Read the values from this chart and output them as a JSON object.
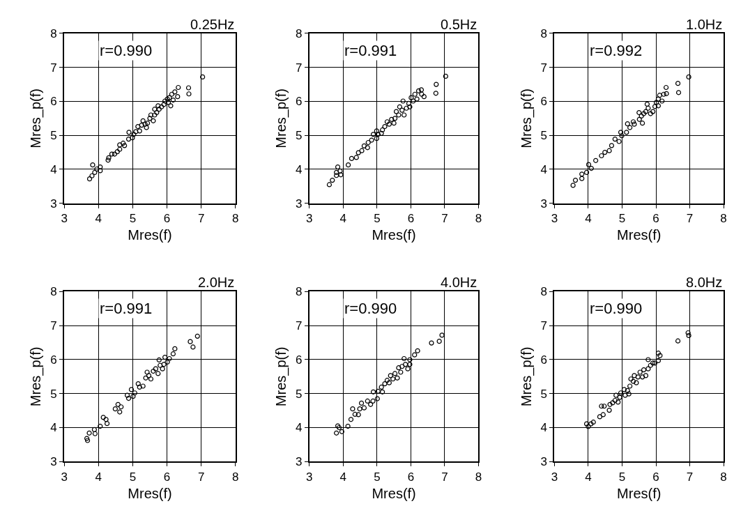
{
  "chart_data": [
    {
      "type": "scatter",
      "title": "0.25Hz",
      "xlabel": "Mres(f)",
      "ylabel": "Mres_p(f)",
      "annotations": [
        "r=0.990"
      ],
      "xlim": [
        3,
        8
      ],
      "ylim": [
        3,
        8
      ],
      "xticks": [
        3,
        4,
        5,
        6,
        7,
        8
      ],
      "yticks": [
        3,
        4,
        5,
        6,
        7,
        8
      ],
      "grid": true,
      "marker": "circle",
      "color": "#000000",
      "x": [
        3.74,
        3.81,
        3.89,
        3.83,
        3.95,
        4.05,
        4.05,
        4.28,
        4.3,
        4.39,
        4.47,
        4.55,
        4.62,
        4.62,
        4.72,
        4.76,
        4.88,
        4.89,
        4.99,
        5.03,
        5.09,
        5.15,
        5.2,
        5.26,
        5.3,
        5.36,
        5.4,
        5.43,
        5.5,
        5.53,
        5.6,
        5.64,
        5.64,
        5.7,
        5.74,
        5.77,
        5.84,
        5.91,
        5.94,
        6.01,
        6.04,
        6.07,
        6.11,
        6.14,
        6.18,
        6.23,
        6.31,
        6.33,
        6.63,
        6.64,
        7.04
      ],
      "values": [
        3.72,
        3.81,
        3.91,
        4.13,
        4.01,
        4.07,
        3.96,
        4.27,
        4.34,
        4.45,
        4.45,
        4.52,
        4.59,
        4.72,
        4.77,
        4.7,
        4.89,
        5.09,
        4.93,
        5.03,
        5.11,
        5.26,
        5.13,
        5.3,
        5.43,
        5.33,
        5.23,
        5.36,
        5.5,
        5.6,
        5.43,
        5.6,
        5.77,
        5.67,
        5.87,
        5.77,
        5.84,
        5.91,
        6.01,
        6.07,
        5.97,
        6.11,
        5.87,
        6.21,
        6.04,
        6.28,
        6.14,
        6.41,
        6.4,
        6.22,
        6.72
      ]
    },
    {
      "type": "scatter",
      "title": "0.5Hz",
      "xlabel": "Mres(f)",
      "ylabel": "Mres_p(f)",
      "annotations": [
        "r=0.991"
      ],
      "xlim": [
        3,
        8
      ],
      "ylim": [
        3,
        8
      ],
      "xticks": [
        3,
        4,
        5,
        6,
        7,
        8
      ],
      "yticks": [
        3,
        4,
        5,
        6,
        7,
        8
      ],
      "grid": true,
      "marker": "circle",
      "color": "#000000",
      "x": [
        3.59,
        3.68,
        3.8,
        3.84,
        3.8,
        3.91,
        3.93,
        4.15,
        4.25,
        4.39,
        4.45,
        4.55,
        4.62,
        4.72,
        4.74,
        4.84,
        4.89,
        4.99,
        4.99,
        5.03,
        5.13,
        5.16,
        5.23,
        5.3,
        5.36,
        5.43,
        5.5,
        5.53,
        5.57,
        5.64,
        5.67,
        5.74,
        5.77,
        5.8,
        5.87,
        5.94,
        5.97,
        6.01,
        6.07,
        6.12,
        6.18,
        6.23,
        6.31,
        6.32,
        6.39,
        6.75,
        6.74,
        7.03
      ],
      "values": [
        3.55,
        3.68,
        3.82,
        4.07,
        3.91,
        3.95,
        3.84,
        4.13,
        4.32,
        4.35,
        4.49,
        4.55,
        4.69,
        4.64,
        4.79,
        4.86,
        5.03,
        5.13,
        4.91,
        5.03,
        5.06,
        5.16,
        5.26,
        5.4,
        5.33,
        5.47,
        5.36,
        5.5,
        5.7,
        5.6,
        5.84,
        5.74,
        6.01,
        5.6,
        5.8,
        5.94,
        5.84,
        6.11,
        6.01,
        6.21,
        6.07,
        6.31,
        6.34,
        6.21,
        6.14,
        6.5,
        6.24,
        6.74
      ]
    },
    {
      "type": "scatter",
      "title": "1.0Hz",
      "xlabel": "Mres(f)",
      "ylabel": "Mres_p(f)",
      "annotations": [
        "r=0.992"
      ],
      "xlim": [
        3,
        8
      ],
      "ylim": [
        3,
        8
      ],
      "xticks": [
        3,
        4,
        5,
        6,
        7,
        8
      ],
      "yticks": [
        3,
        4,
        5,
        6,
        7,
        8
      ],
      "grid": true,
      "marker": "circle",
      "color": "#000000",
      "x": [
        3.55,
        3.62,
        3.81,
        3.81,
        3.95,
        4.01,
        4.09,
        4.22,
        4.39,
        4.49,
        4.62,
        4.69,
        4.79,
        4.91,
        4.96,
        4.99,
        5.13,
        5.16,
        5.23,
        5.33,
        5.36,
        5.5,
        5.51,
        5.57,
        5.6,
        5.64,
        5.7,
        5.74,
        5.77,
        5.84,
        5.91,
        5.97,
        6.01,
        6.07,
        6.07,
        6.11,
        6.18,
        6.23,
        6.31,
        6.3,
        6.65,
        6.67,
        6.97
      ],
      "values": [
        3.53,
        3.68,
        3.73,
        3.86,
        3.91,
        4.14,
        4.03,
        4.26,
        4.4,
        4.5,
        4.55,
        4.7,
        4.89,
        4.82,
        5.09,
        4.99,
        5.09,
        5.34,
        5.23,
        5.4,
        5.33,
        5.67,
        5.47,
        5.57,
        5.36,
        5.64,
        5.7,
        5.92,
        5.8,
        5.64,
        5.7,
        5.85,
        5.97,
        6.07,
        5.87,
        6.18,
        6.01,
        6.21,
        6.23,
        6.41,
        6.53,
        6.26,
        6.72
      ]
    },
    {
      "type": "scatter",
      "title": "2.0Hz",
      "xlabel": "Mres(f)",
      "ylabel": "Mres_p(f)",
      "annotations": [
        "r=0.991"
      ],
      "xlim": [
        3,
        8
      ],
      "ylim": [
        3,
        8
      ],
      "xticks": [
        3,
        4,
        5,
        6,
        7,
        8
      ],
      "yticks": [
        3,
        4,
        5,
        6,
        7,
        8
      ],
      "grid": true,
      "marker": "circle",
      "color": "#000000",
      "x": [
        3.68,
        3.66,
        3.73,
        3.88,
        3.9,
        4.05,
        4.14,
        4.22,
        4.25,
        4.49,
        4.57,
        4.62,
        4.66,
        4.84,
        4.88,
        4.96,
        5.01,
        5.06,
        5.16,
        5.2,
        5.3,
        5.38,
        5.42,
        5.47,
        5.53,
        5.6,
        5.67,
        5.74,
        5.77,
        5.8,
        5.87,
        5.91,
        5.94,
        6.01,
        6.07,
        6.18,
        6.23,
        6.68,
        6.76,
        6.89
      ],
      "values": [
        3.62,
        3.68,
        3.84,
        3.94,
        3.82,
        4.04,
        4.3,
        4.24,
        4.12,
        4.55,
        4.68,
        4.46,
        4.61,
        4.95,
        4.86,
        5.12,
        4.92,
        5.02,
        5.29,
        5.19,
        5.22,
        5.46,
        5.63,
        5.53,
        5.43,
        5.66,
        5.73,
        5.59,
        5.99,
        5.83,
        5.73,
        5.86,
        6.07,
        5.93,
        6.03,
        6.17,
        6.32,
        6.53,
        6.37,
        6.69
      ]
    },
    {
      "type": "scatter",
      "title": "4.0Hz",
      "xlabel": "Mres(f)",
      "ylabel": "Mres_p(f)",
      "annotations": [
        "r=0.990"
      ],
      "xlim": [
        3,
        8
      ],
      "ylim": [
        3,
        8
      ],
      "xticks": [
        3,
        4,
        5,
        6,
        7,
        8
      ],
      "yticks": [
        3,
        4,
        5,
        6,
        7,
        8
      ],
      "grid": true,
      "marker": "circle",
      "color": "#000000",
      "x": [
        3.8,
        3.84,
        3.88,
        3.96,
        4.14,
        4.23,
        4.28,
        4.35,
        4.45,
        4.49,
        4.54,
        4.62,
        4.72,
        4.81,
        4.88,
        4.89,
        5.01,
        5.03,
        5.13,
        5.16,
        5.23,
        5.3,
        5.36,
        5.4,
        5.47,
        5.53,
        5.6,
        5.64,
        5.7,
        5.74,
        5.8,
        5.84,
        5.91,
        5.97,
        5.97,
        6.11,
        6.2,
        6.61,
        6.84,
        6.92
      ],
      "values": [
        3.84,
        4.05,
        4.0,
        3.88,
        4.04,
        4.24,
        4.55,
        4.39,
        4.38,
        4.55,
        4.72,
        4.58,
        4.78,
        4.68,
        4.78,
        5.05,
        4.85,
        5.07,
        5.19,
        5.05,
        5.29,
        5.39,
        5.32,
        5.53,
        5.43,
        5.59,
        5.46,
        5.76,
        5.63,
        5.8,
        6.03,
        5.86,
        5.73,
        6.0,
        5.86,
        6.14,
        6.26,
        6.49,
        6.54,
        6.72
      ]
    },
    {
      "type": "scatter",
      "title": "8.0Hz",
      "xlabel": "Mres(f)",
      "ylabel": "Mres_p(f)",
      "annotations": [
        "r=0.990"
      ],
      "xlim": [
        3,
        8
      ],
      "ylim": [
        3,
        8
      ],
      "xticks": [
        3,
        4,
        5,
        6,
        7,
        8
      ],
      "yticks": [
        3,
        4,
        5,
        6,
        7,
        8
      ],
      "grid": true,
      "marker": "circle",
      "color": "#000000",
      "x": [
        3.95,
        4.0,
        4.08,
        4.15,
        4.34,
        4.44,
        4.39,
        4.47,
        4.62,
        4.64,
        4.72,
        4.79,
        4.82,
        4.88,
        4.93,
        4.96,
        5.06,
        5.09,
        5.16,
        5.2,
        5.23,
        5.26,
        5.33,
        5.36,
        5.42,
        5.47,
        5.53,
        5.6,
        5.64,
        5.7,
        5.77,
        5.77,
        5.84,
        5.91,
        5.97,
        6.07,
        6.07,
        6.12,
        6.65,
        6.95,
        6.97
      ],
      "values": [
        4.11,
        4.03,
        4.11,
        4.16,
        4.32,
        4.38,
        4.63,
        4.63,
        4.51,
        4.68,
        4.73,
        4.8,
        4.95,
        4.75,
        4.89,
        5.02,
        5.12,
        4.95,
        5.09,
        4.99,
        5.22,
        5.43,
        5.36,
        5.53,
        5.32,
        5.49,
        5.63,
        5.49,
        5.7,
        5.53,
        6.0,
        5.73,
        5.83,
        5.9,
        5.9,
        5.97,
        6.19,
        6.12,
        6.55,
        6.79,
        6.71
      ]
    }
  ]
}
